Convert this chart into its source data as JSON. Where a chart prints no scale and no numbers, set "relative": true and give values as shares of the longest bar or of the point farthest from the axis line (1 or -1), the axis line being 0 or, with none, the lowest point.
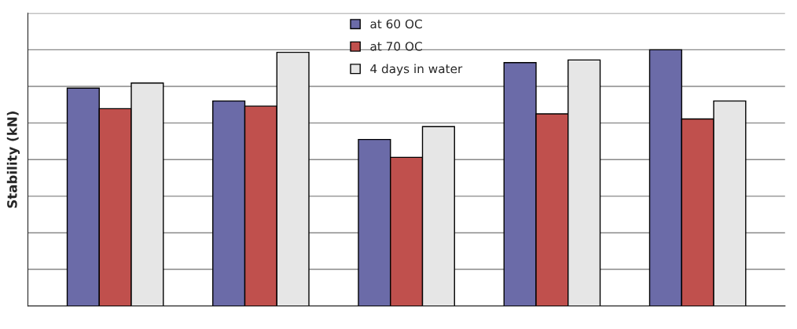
{
  "chart_data": {
    "type": "bar",
    "ylabel": "Stability (kN)",
    "relative": true,
    "categories": [
      null,
      null,
      null,
      null,
      null
    ],
    "series": [
      {
        "name": "at 60 OC",
        "color": "#6b6ba8",
        "values": [
          0.85,
          0.8,
          0.65,
          0.95,
          1.0
        ]
      },
      {
        "name": "at 70 OC",
        "color": "#c0504d",
        "values": [
          0.77,
          0.78,
          0.58,
          0.75,
          0.73
        ]
      },
      {
        "name": "4 days in water",
        "color": "#e6e6e6",
        "values": [
          0.87,
          0.99,
          0.7,
          0.96,
          0.8
        ]
      }
    ],
    "grid": "y",
    "legend": "top"
  }
}
